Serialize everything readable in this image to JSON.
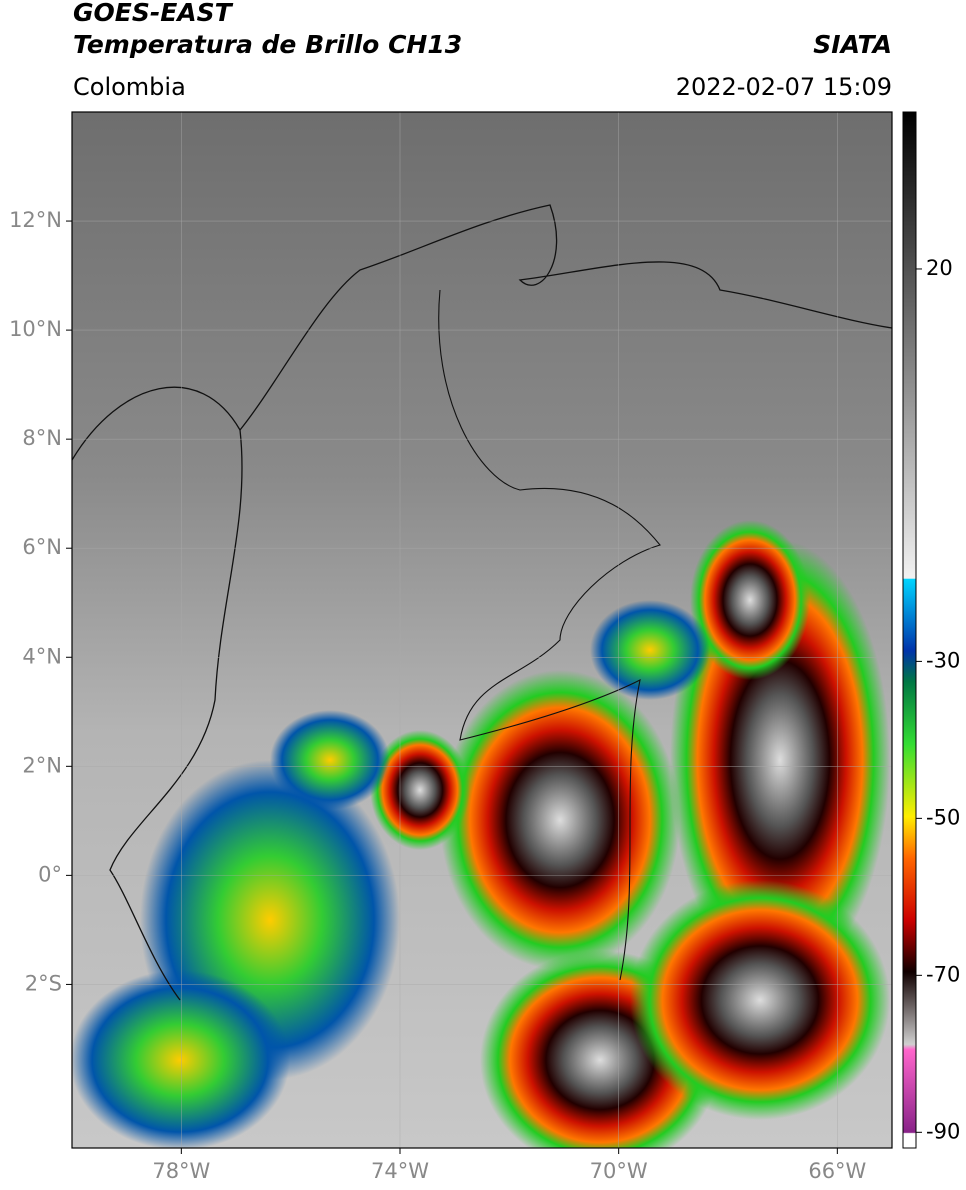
{
  "header": {
    "title": "GOES-EAST",
    "subtitle": "Temperatura de Brillo CH13",
    "source": "SIATA",
    "region": "Colombia",
    "datetime": "2022-02-07 15:09"
  },
  "map": {
    "xlim": [
      -80,
      -65
    ],
    "ylim": [
      -5,
      14
    ],
    "xticks": [
      {
        "value": -78,
        "label": "78°W"
      },
      {
        "value": -74,
        "label": "74°W"
      },
      {
        "value": -70,
        "label": "70°W"
      },
      {
        "value": -66,
        "label": "66°W"
      }
    ],
    "yticks": [
      {
        "value": 12,
        "label": "12°N"
      },
      {
        "value": 10,
        "label": "10°N"
      },
      {
        "value": 8,
        "label": "8°N"
      },
      {
        "value": 6,
        "label": "6°N"
      },
      {
        "value": 4,
        "label": "4°N"
      },
      {
        "value": 2,
        "label": "2°N"
      },
      {
        "value": 0,
        "label": "0°"
      },
      {
        "value": -2,
        "label": "2°S"
      }
    ],
    "grid": true
  },
  "colorbar": {
    "ylim": [
      -92,
      40
    ],
    "yticks": [
      20,
      -30,
      -50,
      -70,
      -90
    ]
  }
}
